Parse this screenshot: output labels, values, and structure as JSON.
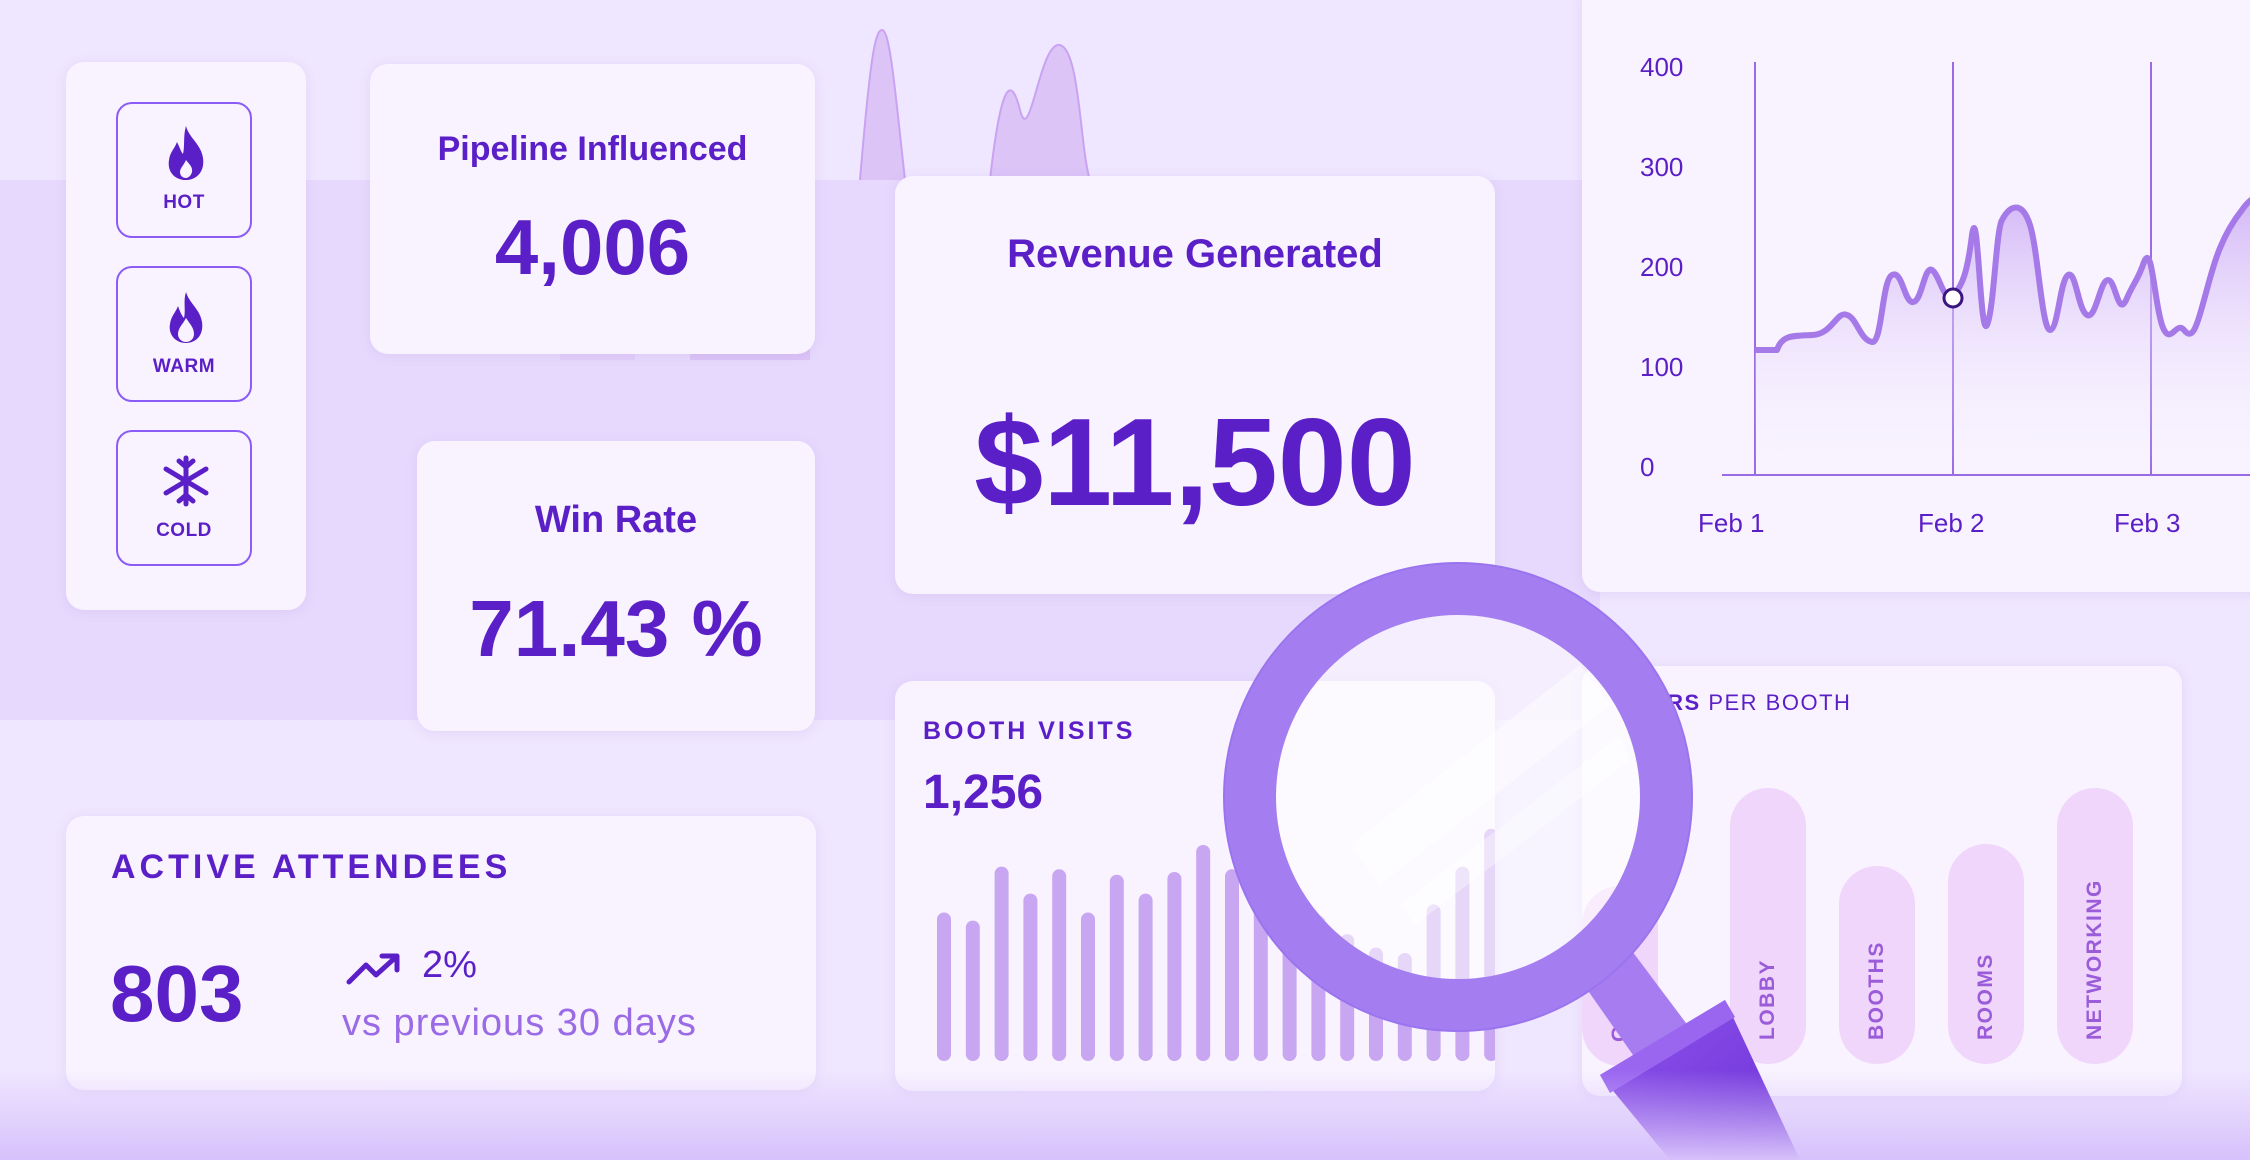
{
  "lead_temperature": {
    "items": [
      {
        "label": "HOT",
        "icon": "flame-icon"
      },
      {
        "label": "WARM",
        "icon": "flame-outline-icon"
      },
      {
        "label": "COLD",
        "icon": "snowflake-icon"
      }
    ]
  },
  "pipeline": {
    "title": "Pipeline Influenced",
    "value": "4,006"
  },
  "win_rate": {
    "title": "Win Rate",
    "value": "71.43 %"
  },
  "revenue": {
    "title": "Revenue Generated",
    "value": "$11,500"
  },
  "active_attendees": {
    "title": "ACTIVE ATTENDEES",
    "value": "803",
    "change": "2%",
    "change_icon": "trend-up-icon",
    "comparison": "vs previous 30 days"
  },
  "booth_visits": {
    "title": "BOOTH VISITS",
    "value": "1,256",
    "bar_levels": [
      0.55,
      0.52,
      0.72,
      0.62,
      0.71,
      0.55,
      0.69,
      0.62,
      0.7,
      0.8,
      0.71,
      0.62,
      0.6,
      0.54,
      0.47,
      0.42,
      0.4,
      0.58,
      0.72,
      0.86
    ]
  },
  "line_chart": {
    "y_ticks": [
      "400",
      "300",
      "200",
      "100",
      "0"
    ],
    "x_ticks": [
      "Feb 1",
      "Feb 2",
      "Feb 3"
    ]
  },
  "visitors_per_booth": {
    "title_visible": "TORS",
    "title_rest": " PER BOOTH",
    "categories": [
      {
        "label": "GE",
        "level": 0.55
      },
      {
        "label": "LOBBY",
        "level": 0.9
      },
      {
        "label": "BOOTHS",
        "level": 0.62
      },
      {
        "label": "ROOMS",
        "level": 0.72
      },
      {
        "label": "NETWORKING",
        "level": 0.9
      }
    ]
  },
  "colors": {
    "primary": "#5b1fc7",
    "accent": "#8b5cf6",
    "background": "#efe6ff",
    "card": "#f8f3ff"
  },
  "decor": {
    "magnifier": "magnifier-icon"
  }
}
